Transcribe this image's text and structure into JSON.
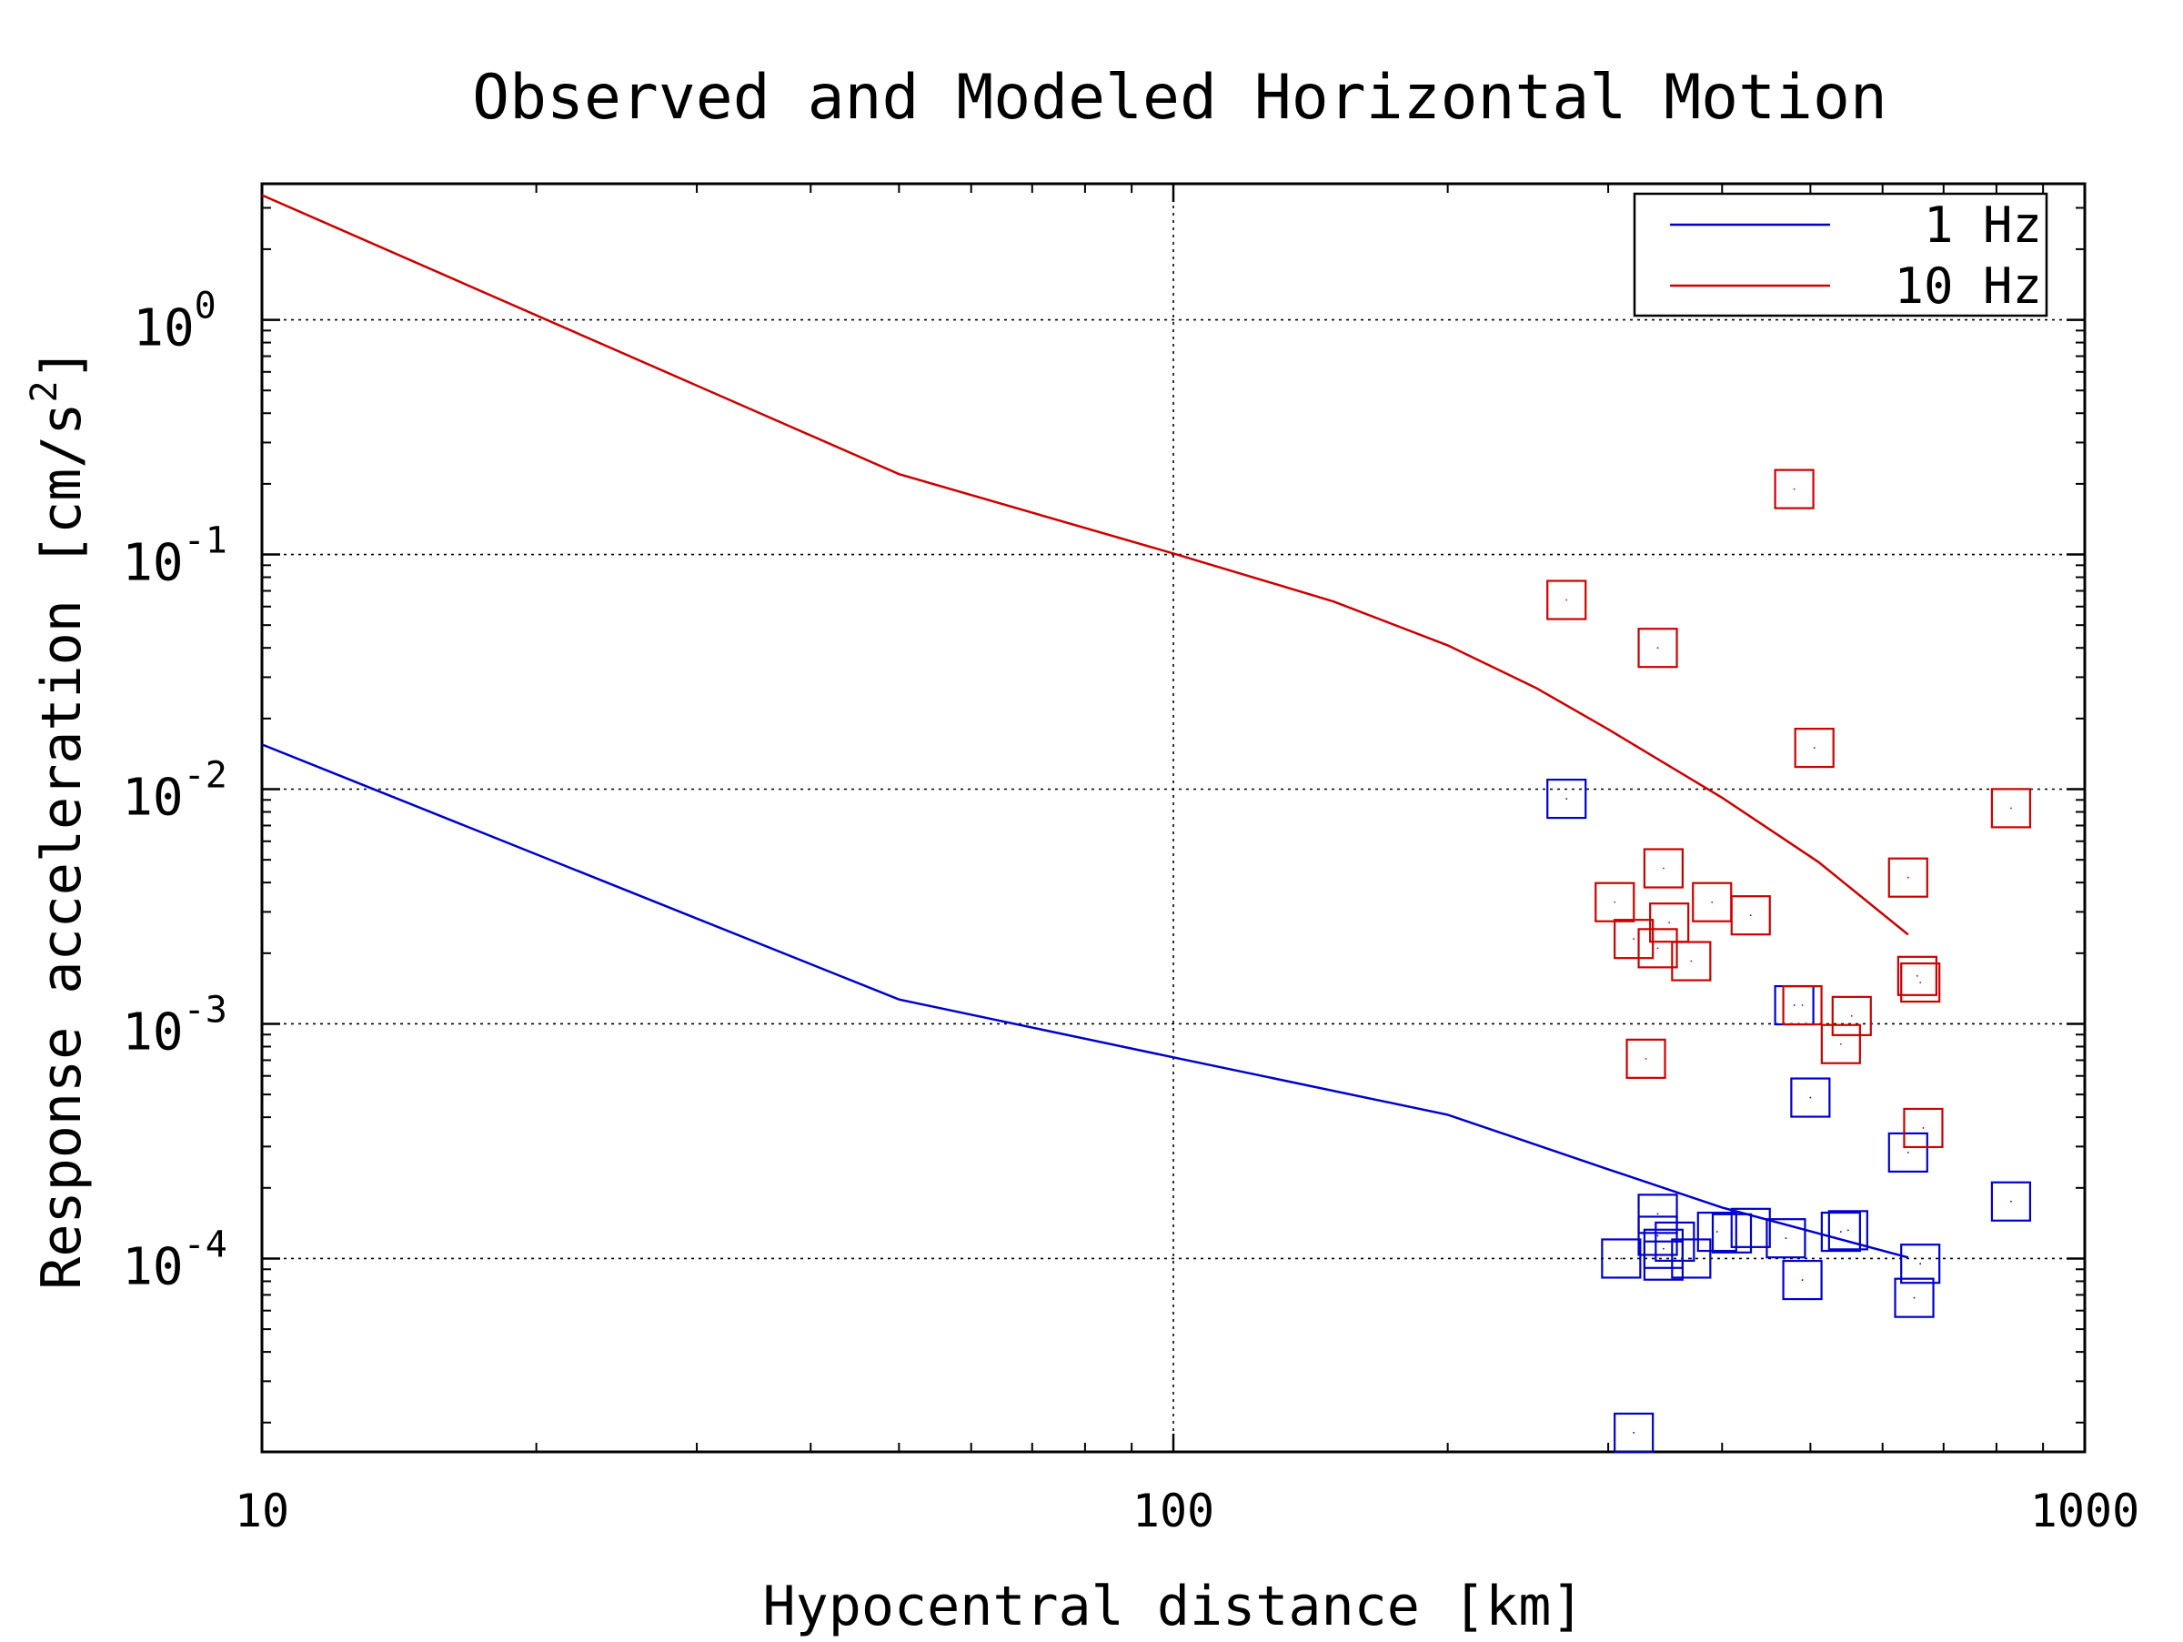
{
  "chart_data": {
    "type": "scatter",
    "title": "Observed and Modeled Horizontal Motion",
    "xlabel": "Hypocentral distance [km]",
    "ylabel_text": "Response acceleration [cm/s",
    "ylabel_superscript": "2",
    "ylabel_close": "]",
    "x_scale": "log",
    "y_scale": "log",
    "xlim": [
      10,
      1000
    ],
    "ylim": [
      1.5e-05,
      3.8
    ],
    "x_ticks": [
      {
        "value": 10,
        "label": "10"
      },
      {
        "value": 100,
        "label": "100"
      },
      {
        "value": 1000,
        "label": "1000"
      }
    ],
    "y_ticks": [
      {
        "value": 1,
        "base": "10",
        "exponent": "0"
      },
      {
        "value": 0.1,
        "base": "10",
        "exponent": "-1"
      },
      {
        "value": 0.01,
        "base": "10",
        "exponent": "-2"
      },
      {
        "value": 0.001,
        "base": "10",
        "exponent": "-3"
      },
      {
        "value": 0.0001,
        "base": "10",
        "exponent": "-4"
      }
    ],
    "grid": true,
    "legend_position": "top-right",
    "legend": [
      {
        "label": "1 Hz",
        "color": "#0000cc"
      },
      {
        "label": "10 Hz",
        "color": "#cc0000"
      }
    ],
    "series": [
      {
        "name": "1 Hz",
        "kind": "line",
        "color": "#0000cc",
        "x": [
          10,
          50,
          100,
          200,
          300,
          400,
          510,
          640
        ],
        "y": [
          0.0155,
          0.00127,
          0.00072,
          0.00041,
          0.00024,
          0.000165,
          0.000128,
          0.000101
        ]
      },
      {
        "name": "10 Hz",
        "kind": "line",
        "color": "#cc0000",
        "x": [
          10,
          50,
          100,
          150,
          200,
          250,
          300,
          400,
          510,
          640
        ],
        "y": [
          3.4,
          0.22,
          0.101,
          0.063,
          0.041,
          0.027,
          0.018,
          0.0092,
          0.0049,
          0.0024
        ]
      },
      {
        "name": "",
        "kind": "markers",
        "color": "#0000cc",
        "x": [
          270,
          320,
          310,
          345,
          340,
          345,
          355,
          340,
          370,
          395,
          410,
          430,
          470,
          480,
          490,
          500,
          540,
          550,
          640,
          650,
          660,
          830
        ],
        "y": [
          0.0091,
          1.81e-05,
          0.0001,
          9.8e-05,
          0.000155,
          0.00011,
          0.000118,
          0.000125,
          0.0001,
          0.00013,
          0.000128,
          0.000135,
          0.000122,
          0.0012,
          8.1e-05,
          0.000485,
          0.00013,
          0.000132,
          0.000283,
          6.8e-05,
          9.5e-05,
          0.000175
        ]
      },
      {
        "name": "",
        "kind": "markers",
        "color": "#cc0000",
        "x": [
          270,
          340,
          305,
          320,
          345,
          350,
          340,
          370,
          390,
          430,
          480,
          490,
          505,
          540,
          555,
          640,
          655,
          660,
          665,
          830,
          330
        ],
        "y": [
          0.064,
          0.04,
          0.0033,
          0.0023,
          0.0046,
          0.0027,
          0.0021,
          0.00185,
          0.0033,
          0.0029,
          0.19,
          0.0012,
          0.015,
          0.00082,
          0.00108,
          0.0042,
          0.0016,
          0.0015,
          0.00036,
          0.0083,
          0.00071
        ]
      }
    ]
  }
}
